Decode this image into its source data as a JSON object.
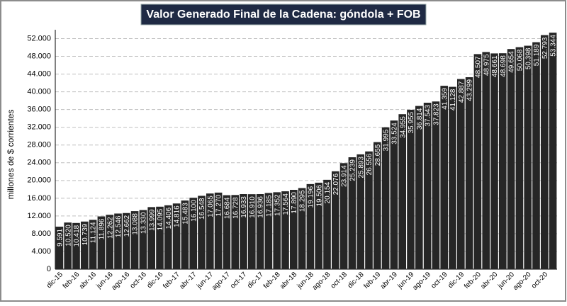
{
  "chart_data": {
    "type": "bar",
    "title": "Valor Generado Final de la Cadena: góndola + FOB",
    "ylabel": "millones de $ corrientes",
    "color": "#262626",
    "grid": true,
    "categories": [
      "dic-15",
      null,
      "feb-16",
      null,
      "abr-16",
      null,
      "jun-16",
      null,
      "ago-16",
      null,
      "oct-16",
      null,
      "dic-16",
      null,
      "feb-17",
      null,
      "abr-17",
      null,
      "jun-17",
      null,
      "ago-17",
      null,
      "oct-17",
      null,
      "dic-17",
      null,
      "feb-18",
      null,
      "abr-18",
      null,
      "jun-18",
      null,
      "ago-18",
      null,
      "oct-18",
      null,
      "dic-18",
      null,
      "feb-19",
      null,
      "abr-19",
      null,
      "jun-19",
      null,
      "ago-19",
      null,
      "oct-19",
      null,
      "dic-19",
      null,
      "feb-20",
      null,
      "abr-20",
      null,
      "jun-20",
      null,
      "ago-20",
      null,
      "oct-20",
      null
    ],
    "values": [
      9591,
      10520,
      10418,
      10739,
      11124,
      11896,
      12262,
      12546,
      12662,
      13088,
      13330,
      13999,
      14095,
      14406,
      14816,
      15483,
      16100,
      16548,
      17065,
      17270,
      16684,
      16728,
      16933,
      16910,
      16936,
      17185,
      17352,
      17564,
      17890,
      18295,
      19196,
      19506,
      20154,
      22076,
      23914,
      25239,
      25893,
      26556,
      28655,
      31995,
      33524,
      34955,
      35955,
      36814,
      37543,
      37823,
      41359,
      41128,
      42887,
      43299,
      48507,
      48975,
      48661,
      48698,
      49654,
      50068,
      50398,
      51189,
      52793,
      53344
    ],
    "value_labels": [
      "9.591",
      "10.520",
      "10.418",
      "10.739",
      "11.124",
      "11.896",
      "12.262",
      "12.546",
      "12.662",
      "13.088",
      "13.330",
      "13.999",
      "14.095",
      "14.406",
      "14.816",
      "15.483",
      "16.100",
      "16.548",
      "17.065",
      "17.270",
      "16.684",
      "16.728",
      "16.933",
      "16.910",
      "16.936",
      "17.185",
      "17.352",
      "17.564",
      "17.890",
      "18.295",
      "19.196",
      "19.506",
      "20.154",
      "22.076",
      "23.914",
      "25.239",
      "25.893",
      "26.556",
      "28.655",
      "31.995",
      "33.524",
      "34.955",
      "35.955",
      "36.814",
      "37.543",
      "37.823",
      "41.359",
      "41.128",
      "42.887",
      "43.299",
      "48.507",
      "48.975",
      "48.661",
      "48.698",
      "49.654",
      "50.068",
      "50.398",
      "51.189",
      "52.793",
      "53.344"
    ],
    "ylim": [
      0,
      54000
    ],
    "yticks": [
      0,
      {
        "value": 4000,
        "label": "4.000"
      },
      {
        "value": 8000,
        "label": "8.000"
      },
      {
        "value": 12000,
        "label": "12.000"
      },
      {
        "value": 16000,
        "label": "16.000"
      },
      {
        "value": 20000,
        "label": "20.000"
      },
      {
        "value": 24000,
        "label": "24.000"
      },
      {
        "value": 28000,
        "label": "28.000"
      },
      {
        "value": 32000,
        "label": "32.000"
      },
      {
        "value": 36000,
        "label": "36.000"
      },
      {
        "value": 40000,
        "label": "40.000"
      },
      {
        "value": 44000,
        "label": "44.000"
      },
      {
        "value": 48000,
        "label": "48.000"
      },
      {
        "value": 52000,
        "label": "52.000"
      }
    ]
  }
}
